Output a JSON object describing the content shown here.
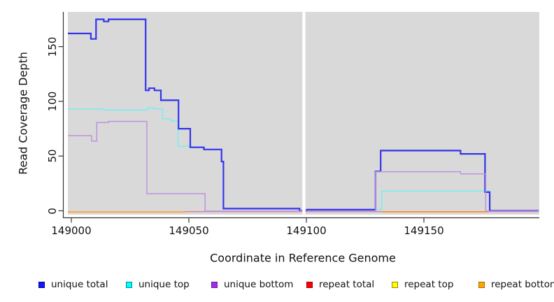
{
  "chart_data": {
    "type": "line",
    "step": true,
    "title": "",
    "xlabel": "Coordinate in Reference Genome",
    "ylabel": "Read Coverage Depth",
    "xticks": [
      149000,
      149050,
      149100,
      149150
    ],
    "yticks": [
      0,
      50,
      100,
      150
    ],
    "xlim": [
      148998.5,
      149198.8
    ],
    "ylim": [
      -3.5,
      181.7
    ],
    "plot_background": "#d9d9d9",
    "axis_color": "#333333",
    "gap": {
      "x_start": 149098.3,
      "x_end": 149099.6,
      "color": "#ffffff"
    },
    "series": [
      {
        "name": "unique total",
        "line_color": "#3434ec",
        "legend_fill": "#1414ff",
        "legend_border": "#00008b",
        "width": 2.2,
        "draw_order": 4,
        "segments": [
          [
            [
              148998.5,
              162
            ],
            [
              149008.3,
              157
            ],
            [
              149010.5,
              175
            ],
            [
              149013.8,
              173
            ],
            [
              149015.8,
              175
            ],
            [
              149031.6,
              110
            ],
            [
              149033.0,
              112
            ],
            [
              149035.4,
              110
            ],
            [
              149038.1,
              101
            ],
            [
              149045.6,
              75
            ],
            [
              149050.6,
              58
            ],
            [
              149056.4,
              56
            ],
            [
              149063.9,
              45
            ],
            [
              149064.7,
              2
            ],
            [
              149097.1,
              0
            ],
            [
              149100.2,
              1
            ],
            [
              149129.4,
              36
            ],
            [
              149131.6,
              55
            ],
            [
              149165.6,
              52
            ],
            [
              149176.0,
              17
            ],
            [
              149178.0,
              0
            ],
            [
              149198.8,
              0
            ]
          ]
        ]
      },
      {
        "name": "unique top",
        "line_color": "#7bedED",
        "legend_fill": "#00ffff",
        "legend_border": "#008b8b",
        "width": 1.5,
        "draw_order": 3,
        "segments": [
          [
            [
              148998.5,
              93
            ],
            [
              149013.8,
              92
            ],
            [
              149032.6,
              94
            ],
            [
              149035.1,
              93
            ],
            [
              149038.8,
              84
            ],
            [
              149042.5,
              82
            ],
            [
              149045.4,
              59
            ],
            [
              149050.6,
              58
            ],
            [
              149056.4,
              56
            ],
            [
              149063.9,
              45
            ],
            [
              149064.7,
              2
            ],
            [
              149097.1,
              0
            ],
            [
              149100.2,
              1
            ],
            [
              149132.1,
              18
            ],
            [
              149178.0,
              0
            ],
            [
              149198.8,
              0
            ]
          ]
        ]
      },
      {
        "name": "unique bottom",
        "line_color": "#be93de",
        "legend_fill": "#a12ce8",
        "legend_border": "#6a1b9a",
        "width": 1.5,
        "draw_order": 5,
        "segments": [
          [
            [
              148998.5,
              69
            ],
            [
              149008.6,
              64
            ],
            [
              149010.8,
              81
            ],
            [
              149015.8,
              82
            ],
            [
              149032.1,
              16
            ],
            [
              149056.9,
              0
            ],
            [
              149129.4,
              36
            ],
            [
              149165.6,
              34
            ],
            [
              149176.3,
              0
            ],
            [
              149198.8,
              0
            ]
          ]
        ]
      },
      {
        "name": "repeat total",
        "line_color": "#dc7b93",
        "legend_fill": "#ff0000",
        "legend_border": "#990000",
        "width": 1.4,
        "draw_order": 1,
        "segments": [
          [
            [
              149048.5,
              0
            ],
            [
              149198.8,
              0
            ]
          ]
        ]
      },
      {
        "name": "repeat top",
        "line_color": "#aed9a4",
        "legend_fill": "#ffff00",
        "legend_border": "#9b870c",
        "width": 1.4,
        "draw_order": 0,
        "segments": [
          [
            [
              149100.2,
              0
            ],
            [
              149129.4,
              0
            ]
          ]
        ]
      },
      {
        "name": "repeat bottom",
        "line_color": "#ffa024",
        "legend_fill": "#ffa500",
        "legend_border": "#a66b00",
        "width": 1.7,
        "draw_order": 2,
        "segments": [
          [
            [
              148998.5,
              0
            ],
            [
              149048.5,
              0
            ]
          ],
          [
            [
              149132.3,
              0
            ],
            [
              149177.4,
              0
            ]
          ]
        ]
      }
    ]
  }
}
